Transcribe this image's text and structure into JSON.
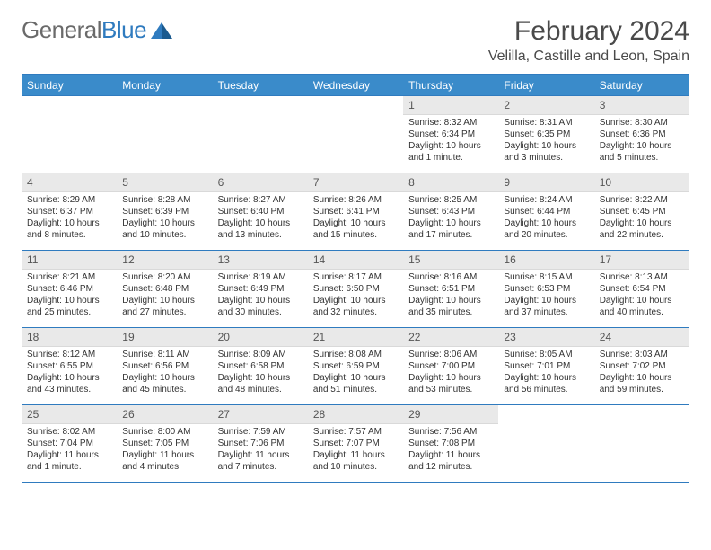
{
  "logo": {
    "word1": "General",
    "word2": "Blue"
  },
  "title": "February 2024",
  "location": "Velilla, Castille and Leon, Spain",
  "colors": {
    "header_bg": "#3a8bca",
    "border": "#2f7bbf",
    "daynum_bg": "#e9e9e9",
    "text": "#333333"
  },
  "weekdays": [
    "Sunday",
    "Monday",
    "Tuesday",
    "Wednesday",
    "Thursday",
    "Friday",
    "Saturday"
  ],
  "weeks": [
    [
      null,
      null,
      null,
      null,
      {
        "n": "1",
        "sr": "Sunrise: 8:32 AM",
        "ss": "Sunset: 6:34 PM",
        "dl": "Daylight: 10 hours and 1 minute."
      },
      {
        "n": "2",
        "sr": "Sunrise: 8:31 AM",
        "ss": "Sunset: 6:35 PM",
        "dl": "Daylight: 10 hours and 3 minutes."
      },
      {
        "n": "3",
        "sr": "Sunrise: 8:30 AM",
        "ss": "Sunset: 6:36 PM",
        "dl": "Daylight: 10 hours and 5 minutes."
      }
    ],
    [
      {
        "n": "4",
        "sr": "Sunrise: 8:29 AM",
        "ss": "Sunset: 6:37 PM",
        "dl": "Daylight: 10 hours and 8 minutes."
      },
      {
        "n": "5",
        "sr": "Sunrise: 8:28 AM",
        "ss": "Sunset: 6:39 PM",
        "dl": "Daylight: 10 hours and 10 minutes."
      },
      {
        "n": "6",
        "sr": "Sunrise: 8:27 AM",
        "ss": "Sunset: 6:40 PM",
        "dl": "Daylight: 10 hours and 13 minutes."
      },
      {
        "n": "7",
        "sr": "Sunrise: 8:26 AM",
        "ss": "Sunset: 6:41 PM",
        "dl": "Daylight: 10 hours and 15 minutes."
      },
      {
        "n": "8",
        "sr": "Sunrise: 8:25 AM",
        "ss": "Sunset: 6:43 PM",
        "dl": "Daylight: 10 hours and 17 minutes."
      },
      {
        "n": "9",
        "sr": "Sunrise: 8:24 AM",
        "ss": "Sunset: 6:44 PM",
        "dl": "Daylight: 10 hours and 20 minutes."
      },
      {
        "n": "10",
        "sr": "Sunrise: 8:22 AM",
        "ss": "Sunset: 6:45 PM",
        "dl": "Daylight: 10 hours and 22 minutes."
      }
    ],
    [
      {
        "n": "11",
        "sr": "Sunrise: 8:21 AM",
        "ss": "Sunset: 6:46 PM",
        "dl": "Daylight: 10 hours and 25 minutes."
      },
      {
        "n": "12",
        "sr": "Sunrise: 8:20 AM",
        "ss": "Sunset: 6:48 PM",
        "dl": "Daylight: 10 hours and 27 minutes."
      },
      {
        "n": "13",
        "sr": "Sunrise: 8:19 AM",
        "ss": "Sunset: 6:49 PM",
        "dl": "Daylight: 10 hours and 30 minutes."
      },
      {
        "n": "14",
        "sr": "Sunrise: 8:17 AM",
        "ss": "Sunset: 6:50 PM",
        "dl": "Daylight: 10 hours and 32 minutes."
      },
      {
        "n": "15",
        "sr": "Sunrise: 8:16 AM",
        "ss": "Sunset: 6:51 PM",
        "dl": "Daylight: 10 hours and 35 minutes."
      },
      {
        "n": "16",
        "sr": "Sunrise: 8:15 AM",
        "ss": "Sunset: 6:53 PM",
        "dl": "Daylight: 10 hours and 37 minutes."
      },
      {
        "n": "17",
        "sr": "Sunrise: 8:13 AM",
        "ss": "Sunset: 6:54 PM",
        "dl": "Daylight: 10 hours and 40 minutes."
      }
    ],
    [
      {
        "n": "18",
        "sr": "Sunrise: 8:12 AM",
        "ss": "Sunset: 6:55 PM",
        "dl": "Daylight: 10 hours and 43 minutes."
      },
      {
        "n": "19",
        "sr": "Sunrise: 8:11 AM",
        "ss": "Sunset: 6:56 PM",
        "dl": "Daylight: 10 hours and 45 minutes."
      },
      {
        "n": "20",
        "sr": "Sunrise: 8:09 AM",
        "ss": "Sunset: 6:58 PM",
        "dl": "Daylight: 10 hours and 48 minutes."
      },
      {
        "n": "21",
        "sr": "Sunrise: 8:08 AM",
        "ss": "Sunset: 6:59 PM",
        "dl": "Daylight: 10 hours and 51 minutes."
      },
      {
        "n": "22",
        "sr": "Sunrise: 8:06 AM",
        "ss": "Sunset: 7:00 PM",
        "dl": "Daylight: 10 hours and 53 minutes."
      },
      {
        "n": "23",
        "sr": "Sunrise: 8:05 AM",
        "ss": "Sunset: 7:01 PM",
        "dl": "Daylight: 10 hours and 56 minutes."
      },
      {
        "n": "24",
        "sr": "Sunrise: 8:03 AM",
        "ss": "Sunset: 7:02 PM",
        "dl": "Daylight: 10 hours and 59 minutes."
      }
    ],
    [
      {
        "n": "25",
        "sr": "Sunrise: 8:02 AM",
        "ss": "Sunset: 7:04 PM",
        "dl": "Daylight: 11 hours and 1 minute."
      },
      {
        "n": "26",
        "sr": "Sunrise: 8:00 AM",
        "ss": "Sunset: 7:05 PM",
        "dl": "Daylight: 11 hours and 4 minutes."
      },
      {
        "n": "27",
        "sr": "Sunrise: 7:59 AM",
        "ss": "Sunset: 7:06 PM",
        "dl": "Daylight: 11 hours and 7 minutes."
      },
      {
        "n": "28",
        "sr": "Sunrise: 7:57 AM",
        "ss": "Sunset: 7:07 PM",
        "dl": "Daylight: 11 hours and 10 minutes."
      },
      {
        "n": "29",
        "sr": "Sunrise: 7:56 AM",
        "ss": "Sunset: 7:08 PM",
        "dl": "Daylight: 11 hours and 12 minutes."
      },
      null,
      null
    ]
  ]
}
